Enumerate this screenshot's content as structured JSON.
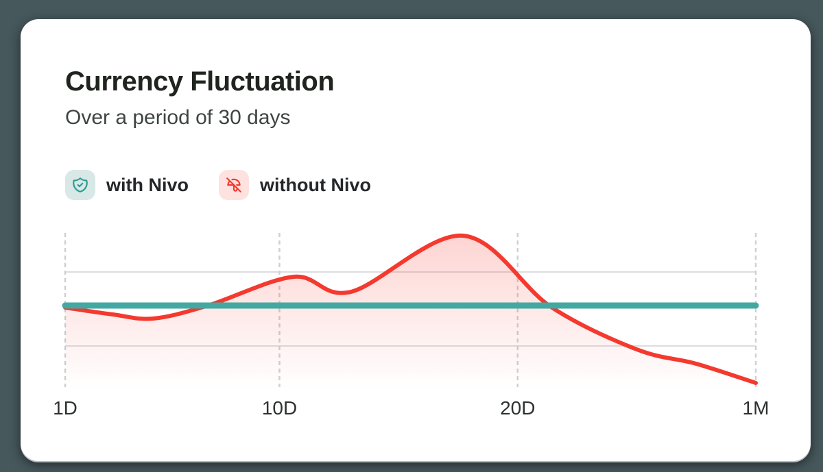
{
  "window": {
    "background_color": "#46585c",
    "card_color": "#ffffff"
  },
  "header": {
    "title": "Currency Fluctuation",
    "subtitle": "Over a period of 30 days"
  },
  "legend": {
    "items": [
      {
        "label": "with Nivo",
        "icon": "shield-check-icon",
        "icon_color": "#2c9c93",
        "icon_bg": "#d8e8e6"
      },
      {
        "label": "without Nivo",
        "icon": "umbrella-off-icon",
        "icon_color": "#f4392e",
        "icon_bg": "#fde2e0"
      }
    ]
  },
  "chart_data": {
    "type": "area",
    "title": "Currency Fluctuation",
    "subtitle": "Over a period of 30 days",
    "x_unit": "days",
    "x_range": [
      1,
      30
    ],
    "x_ticks": [
      {
        "day": 1,
        "label": "1D"
      },
      {
        "day": 10,
        "label": "10D"
      },
      {
        "day": 20,
        "label": "20D"
      },
      {
        "day": 30,
        "label": "1M"
      }
    ],
    "y_axis_visible": false,
    "y_relative_range": [
      -1.22,
      1.08
    ],
    "y_baseline": 0,
    "grid": {
      "horizontal_lines_y": [
        0.49,
        -0.59
      ],
      "vertical_dashed_at_ticks": true
    },
    "legend_position": "top-left",
    "series": [
      {
        "name": "with Nivo",
        "color": "#44a8a2",
        "style": "thick-flat-line",
        "line_width": 9,
        "points": [
          [
            1,
            0
          ],
          [
            30,
            0
          ]
        ]
      },
      {
        "name": "without Nivo",
        "color": "#f4392e",
        "style": "smooth-line",
        "line_width": 6,
        "fill": "gradient-fade-down",
        "fill_opacity_top": 0.22,
        "points": [
          [
            1,
            -0.03
          ],
          [
            3,
            -0.13
          ],
          [
            4.7,
            -0.19
          ],
          [
            7,
            0.0
          ],
          [
            10.6,
            0.42
          ],
          [
            13,
            0.2
          ],
          [
            17.7,
            1.02
          ],
          [
            21.4,
            -0.02
          ],
          [
            25,
            -0.64
          ],
          [
            27.5,
            -0.85
          ],
          [
            30,
            -1.13
          ]
        ]
      }
    ]
  }
}
